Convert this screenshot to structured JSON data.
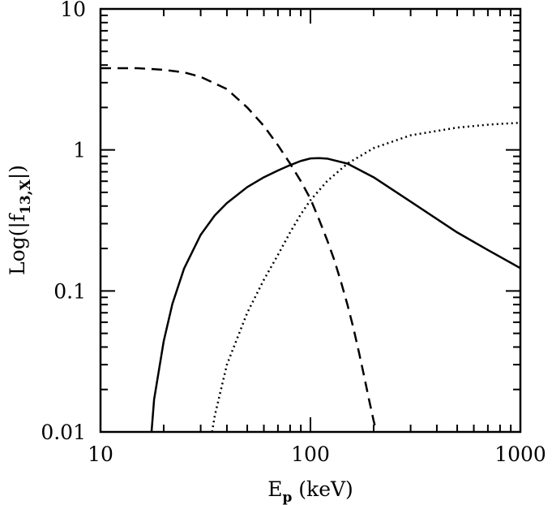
{
  "chart_data": {
    "type": "line",
    "xscale": "log",
    "yscale": "log",
    "xlim": [
      10,
      1000
    ],
    "ylim": [
      0.01,
      10
    ],
    "xlabel": {
      "main": "E",
      "sub": "p",
      "units": " (keV)"
    },
    "ylabel": {
      "before": "Log(|f",
      "sub": "13,X",
      "after": "|)"
    },
    "x_tick_labels": [
      {
        "value": 10,
        "label": "10"
      },
      {
        "value": 100,
        "label": "100"
      },
      {
        "value": 1000,
        "label": "1000"
      }
    ],
    "y_tick_labels": [
      {
        "value": 0.01,
        "label": "0.01"
      },
      {
        "value": 0.1,
        "label": "0.1"
      },
      {
        "value": 1,
        "label": "1"
      },
      {
        "value": 10,
        "label": "10"
      }
    ],
    "grid": false,
    "legend": "none",
    "series": [
      {
        "style": "solid",
        "x": [
          17.5,
          18,
          20,
          22,
          25,
          30,
          35,
          40,
          50,
          60,
          70,
          80,
          90,
          100,
          110,
          120,
          150,
          200,
          300,
          500,
          700,
          1000
        ],
        "y": [
          0.01,
          0.017,
          0.044,
          0.081,
          0.144,
          0.25,
          0.343,
          0.42,
          0.545,
          0.64,
          0.715,
          0.78,
          0.835,
          0.87,
          0.875,
          0.868,
          0.8,
          0.64,
          0.43,
          0.26,
          0.195,
          0.145
        ]
      },
      {
        "style": "dashed",
        "x": [
          10,
          15,
          20,
          25,
          30,
          40,
          50,
          60,
          70,
          80,
          90,
          100,
          110,
          120,
          130,
          140,
          150,
          160,
          170,
          180,
          190,
          200,
          210
        ],
        "y": [
          3.8,
          3.8,
          3.7,
          3.55,
          3.3,
          2.7,
          2.0,
          1.48,
          1.08,
          0.8,
          0.6,
          0.45,
          0.32,
          0.23,
          0.165,
          0.115,
          0.08,
          0.055,
          0.037,
          0.025,
          0.017,
          0.012,
          0.009
        ]
      },
      {
        "style": "dotted",
        "x": [
          34,
          35,
          40,
          50,
          60,
          70,
          80,
          90,
          100,
          120,
          150,
          200,
          300,
          500,
          700,
          1000
        ],
        "y": [
          0.01,
          0.013,
          0.03,
          0.07,
          0.12,
          0.18,
          0.26,
          0.35,
          0.44,
          0.6,
          0.8,
          1.03,
          1.27,
          1.44,
          1.51,
          1.56
        ]
      }
    ]
  }
}
